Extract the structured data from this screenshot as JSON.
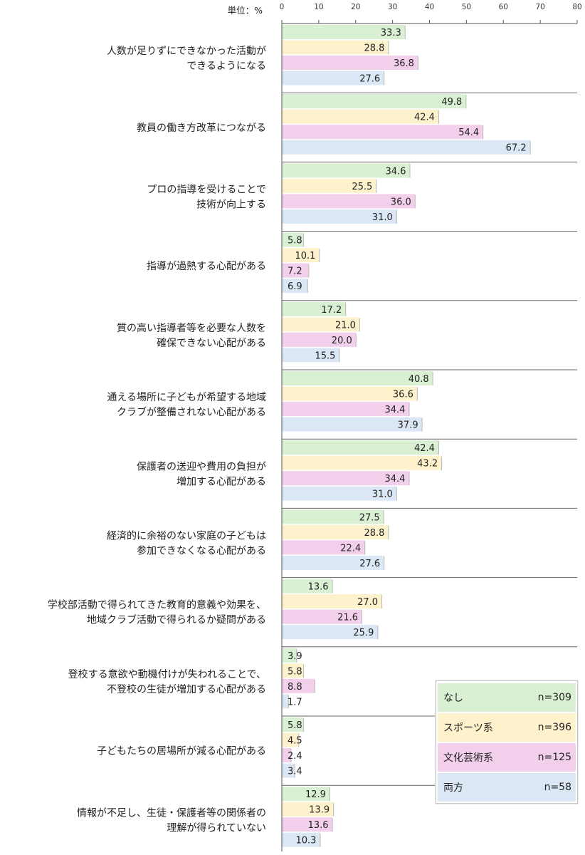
{
  "chart_data": {
    "type": "bar",
    "orientation": "horizontal",
    "unit_label": "単位：%",
    "xlim": [
      0,
      80
    ],
    "xticks": [
      0,
      10,
      20,
      30,
      40,
      50,
      60,
      70,
      80
    ],
    "categories": [
      [
        "人数が足りずにできなかった活動が",
        "できるようになる"
      ],
      [
        "教員の働き方改革につながる"
      ],
      [
        "プロの指導を受けることで",
        "技術が向上する"
      ],
      [
        "指導が過熱する心配がある"
      ],
      [
        "質の高い指導者等を必要な人数を",
        "確保できない心配がある"
      ],
      [
        "通える場所に子どもが希望する地域",
        "クラブが整備されない心配がある"
      ],
      [
        "保護者の送迎や費用の負担が",
        "増加する心配がある"
      ],
      [
        "経済的に余裕のない家庭の子どもは",
        "参加できなくなる心配がある"
      ],
      [
        "学校部活動で得られてきた教育的意義や効果を、",
        "地域クラブ活動で得られるか疑問がある"
      ],
      [
        "登校する意欲や動機付けが失われることで、",
        "不登校の生徒が増加する心配がある"
      ],
      [
        "子どもたちの居場所が減る心配がある"
      ],
      [
        "情報が不足し、生徒・保護者等の関係者の",
        "理解が得られていない"
      ]
    ],
    "series": [
      {
        "name": "なし",
        "n": "n=309",
        "color": "#d9f0d3",
        "values": [
          "33.3",
          "49.8",
          "34.6",
          "5.8",
          "17.2",
          "40.8",
          "42.4",
          "27.5",
          "13.6",
          "3.9",
          "5.8",
          "12.9"
        ]
      },
      {
        "name": "スポーツ系",
        "n": "n=396",
        "color": "#fdf2cc",
        "values": [
          "28.8",
          "42.4",
          "25.5",
          "10.1",
          "21.0",
          "36.6",
          "43.2",
          "28.8",
          "27.0",
          "5.8",
          "4.5",
          "13.9"
        ]
      },
      {
        "name": "文化芸術系",
        "n": "n=125",
        "color": "#f2cfea",
        "values": [
          "36.8",
          "54.4",
          "36.0",
          "7.2",
          "20.0",
          "34.4",
          "34.4",
          "22.4",
          "21.6",
          "8.8",
          "2.4",
          "13.6"
        ]
      },
      {
        "name": "両方",
        "n": "n=58",
        "color": "#dbe7f5",
        "values": [
          "27.6",
          "67.2",
          "31.0",
          "6.9",
          "15.5",
          "37.9",
          "31.0",
          "27.6",
          "25.9",
          "1.7",
          "3.4",
          "10.3"
        ]
      }
    ]
  }
}
